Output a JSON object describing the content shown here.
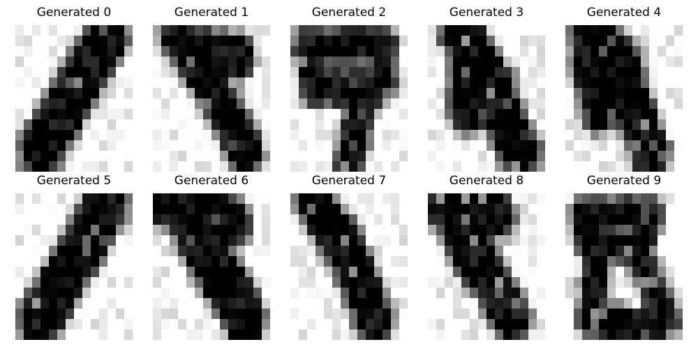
{
  "panels": [
    {
      "title": "Generated 0",
      "shape": "diagonal-bar"
    },
    {
      "title": "Generated 1",
      "shape": "thick-strand"
    },
    {
      "title": "Generated 2",
      "shape": "loop-with-tail"
    },
    {
      "title": "Generated 3",
      "shape": "upright-blob"
    },
    {
      "title": "Generated 4",
      "shape": "tilted-blob"
    },
    {
      "title": "Generated 5",
      "shape": "diagonal-bar"
    },
    {
      "title": "Generated 6",
      "shape": "wide-blob"
    },
    {
      "title": "Generated 7",
      "shape": "diagonal-strand"
    },
    {
      "title": "Generated 8",
      "shape": "hooked-blob"
    },
    {
      "title": "Generated 9",
      "shape": "open-eight"
    }
  ],
  "colors": {
    "background": "#ffffff",
    "ink": "#000000"
  }
}
